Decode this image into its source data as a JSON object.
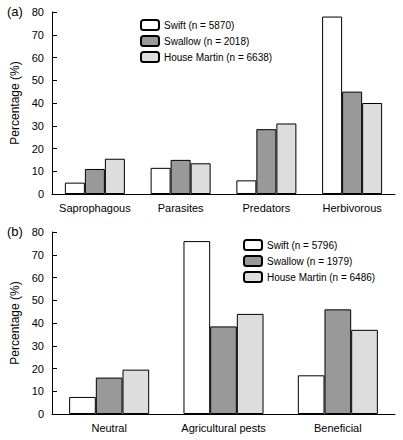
{
  "chart_data": [
    {
      "type": "bar",
      "title": "(a)",
      "y_label": "Percentage (%)",
      "categories": [
        "Saprophagous",
        "Parasites",
        "Predators",
        "Herbivorous"
      ],
      "series": [
        {
          "name": "Swift (n = 5870)",
          "color": "#ffffff",
          "values": [
            5,
            11.5,
            6,
            78
          ]
        },
        {
          "name": "Swallow (n = 2018)",
          "color": "#999999",
          "values": [
            11,
            15,
            28.5,
            45
          ]
        },
        {
          "name": "House Martin (n = 6638)",
          "color": "#dddddd",
          "values": [
            15.5,
            13.5,
            31,
            40
          ]
        }
      ],
      "ylim": [
        0,
        80
      ],
      "yticks": [
        0,
        10,
        20,
        30,
        40,
        50,
        60,
        70,
        80
      ],
      "grid": false
    },
    {
      "type": "bar",
      "title": "(b)",
      "y_label": "Percentage (%)",
      "categories": [
        "Neutral",
        "Agricultural pests",
        "Beneficial"
      ],
      "series": [
        {
          "name": "Swift (n = 5796)",
          "color": "#ffffff",
          "values": [
            7.5,
            76,
            17
          ]
        },
        {
          "name": "Swallow (n = 1979)",
          "color": "#999999",
          "values": [
            16,
            38.5,
            46
          ]
        },
        {
          "name": "House Martin (n = 6486)",
          "color": "#dddddd",
          "values": [
            19.5,
            44,
            37
          ]
        }
      ],
      "ylim": [
        0,
        80
      ],
      "yticks": [
        0,
        10,
        20,
        30,
        40,
        50,
        60,
        70,
        80
      ],
      "grid": false
    }
  ]
}
